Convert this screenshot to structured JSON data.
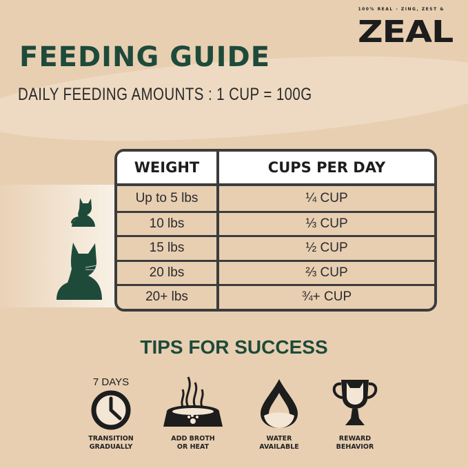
{
  "brand": {
    "tagline": "100% REAL - ZING, ZEST &",
    "logo": "ZEAL"
  },
  "title": "FEEDING GUIDE",
  "subtitle": "DAILY FEEDING AMOUNTS : 1 CUP = 100G",
  "table": {
    "headers": [
      "WEIGHT",
      "CUPS PER DAY"
    ],
    "rows": [
      {
        "weight": "Up to 5 lbs",
        "cups": "¼ CUP"
      },
      {
        "weight": "10 lbs",
        "cups": "⅓ CUP"
      },
      {
        "weight": "15 lbs",
        "cups": "½ CUP"
      },
      {
        "weight": "20 lbs",
        "cups": "⅔ CUP"
      },
      {
        "weight": "20+ lbs",
        "cups": "¾+ CUP"
      }
    ]
  },
  "tips": {
    "title": "TIPS FOR SUCCESS",
    "clock_label": "7 DAYS",
    "items": [
      {
        "icon": "clock-icon",
        "line1": "TRANSITION",
        "line2": "GRADUALLY"
      },
      {
        "icon": "bowl-icon",
        "line1": "ADD BROTH",
        "line2": "OR HEAT"
      },
      {
        "icon": "water-drop-icon",
        "line1": "WATER",
        "line2": "AVAILABLE"
      },
      {
        "icon": "trophy-icon",
        "line1": "REWARD",
        "line2": "BEHAVIOR"
      }
    ]
  },
  "colors": {
    "background": "#e8cfb2",
    "accent": "#1e4a3a",
    "dark": "#1d1d1d"
  }
}
